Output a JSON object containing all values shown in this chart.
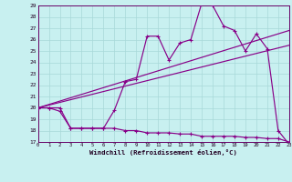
{
  "background_color": "#c8f0f0",
  "grid_color": "#a8d8d8",
  "line_color": "#880088",
  "x_label": "Windchill (Refroidissement éolien,°C)",
  "ylim": [
    17,
    29
  ],
  "xlim": [
    0,
    23
  ],
  "yticks": [
    17,
    18,
    19,
    20,
    21,
    22,
    23,
    24,
    25,
    26,
    27,
    28,
    29
  ],
  "xticks": [
    0,
    1,
    2,
    3,
    4,
    5,
    6,
    7,
    8,
    9,
    10,
    11,
    12,
    13,
    14,
    15,
    16,
    17,
    18,
    19,
    20,
    21,
    22,
    23
  ],
  "series_jagged_x": [
    0,
    1,
    2,
    3,
    4,
    5,
    6,
    7,
    8,
    9,
    10,
    11,
    12,
    13,
    14,
    15,
    16,
    17,
    18,
    19,
    20,
    21,
    22,
    23
  ],
  "series_jagged_y": [
    20.0,
    20.0,
    19.7,
    18.2,
    18.2,
    18.2,
    18.2,
    19.8,
    22.3,
    22.5,
    26.3,
    26.3,
    24.2,
    25.7,
    26.0,
    29.2,
    29.0,
    27.2,
    26.8,
    25.0,
    26.5,
    25.2,
    18.0,
    16.8
  ],
  "series_flat_x": [
    0,
    1,
    2,
    3,
    4,
    5,
    6,
    7,
    8,
    9,
    10,
    11,
    12,
    13,
    14,
    15,
    16,
    17,
    18,
    19,
    20,
    21,
    22,
    23
  ],
  "series_flat_y": [
    20.0,
    20.0,
    20.0,
    18.2,
    18.2,
    18.2,
    18.2,
    18.2,
    18.0,
    18.0,
    17.8,
    17.8,
    17.8,
    17.7,
    17.7,
    17.5,
    17.5,
    17.5,
    17.5,
    17.4,
    17.4,
    17.3,
    17.3,
    17.0
  ],
  "trend1_x": [
    0,
    23
  ],
  "trend1_y": [
    20.0,
    26.8
  ],
  "trend2_x": [
    0,
    23
  ],
  "trend2_y": [
    20.0,
    25.5
  ]
}
